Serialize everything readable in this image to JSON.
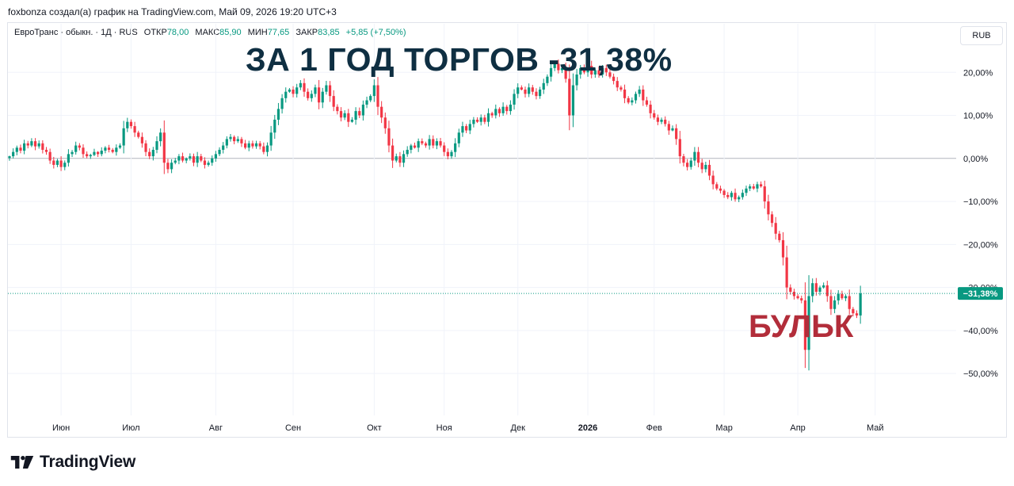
{
  "credit": "foxbonza создал(а) график на TradingView.com, Май 09, 2026 19:20 UTC+3",
  "legend": {
    "symbol": "ЕвроТранс · обыкн. · 1Д · RUS",
    "open_label": "ОТКР",
    "open_value": "78,00",
    "high_label": "МАКС",
    "high_value": "85,90",
    "low_label": "МИН",
    "low_value": "77,65",
    "close_label": "ЗАКР",
    "close_value": "83,85",
    "change": "+5,85 (+7,50%)"
  },
  "currency_button": "RUB",
  "headline": "ЗА 1 ГОД ТОРГОВ -31,38%",
  "annotation": "БУЛЬК",
  "brand": "TradingView",
  "colors": {
    "up": "#089981",
    "down": "#f23645",
    "headline": "#0f2f42",
    "annotation": "#b22d3a",
    "grid": "#f0f3fa",
    "zero_line": "#b2b5be"
  },
  "chart_data": {
    "type": "candlestick",
    "scale": "percent",
    "ylim": [
      -59,
      30
    ],
    "y_ticks": [
      {
        "value": 20,
        "label": "20,00%"
      },
      {
        "value": 10,
        "label": "10,00%"
      },
      {
        "value": 0,
        "label": "0,00%"
      },
      {
        "value": -10,
        "label": "−10,00%"
      },
      {
        "value": -20,
        "label": "−20,00%"
      },
      {
        "value": -30,
        "label": "−30,00%"
      },
      {
        "value": -40,
        "label": "−40,00%"
      },
      {
        "value": -50,
        "label": "−50,00%"
      }
    ],
    "x_ticks": [
      {
        "label": "Июн",
        "index": 14,
        "bold": false
      },
      {
        "label": "Июл",
        "index": 33,
        "bold": false
      },
      {
        "label": "Авг",
        "index": 56,
        "bold": false
      },
      {
        "label": "Сен",
        "index": 77,
        "bold": false
      },
      {
        "label": "Окт",
        "index": 99,
        "bold": false
      },
      {
        "label": "Ноя",
        "index": 118,
        "bold": false
      },
      {
        "label": "Дек",
        "index": 138,
        "bold": false
      },
      {
        "label": "2026",
        "index": 157,
        "bold": true
      },
      {
        "label": "Фев",
        "index": 175,
        "bold": false
      },
      {
        "label": "Мар",
        "index": 194,
        "bold": false
      },
      {
        "label": "Апр",
        "index": 214,
        "bold": false
      },
      {
        "label": "Май",
        "index": 235,
        "bold": false
      }
    ],
    "last_value": -31.38,
    "last_label": "−31,38%",
    "closes": [
      0.5,
      1.5,
      2.5,
      1.8,
      3.5,
      3.0,
      4.0,
      2.8,
      3.5,
      2.0,
      1.5,
      -0.5,
      -1.5,
      -0.5,
      -2.0,
      -1.0,
      1.0,
      1.5,
      3.0,
      2.5,
      1.0,
      0.5,
      0.8,
      1.5,
      1.0,
      1.8,
      2.5,
      2.0,
      1.5,
      2.5,
      3.0,
      7.0,
      8.5,
      7.5,
      6.0,
      5.0,
      3.5,
      1.5,
      0.5,
      2.0,
      4.0,
      6.0,
      -1.0,
      -2.5,
      -1.0,
      -0.5,
      0.5,
      -0.5,
      0.0,
      0.5,
      -1.0,
      0.5,
      -0.5,
      -1.5,
      -1.0,
      0.0,
      1.0,
      2.0,
      3.0,
      4.5,
      5.0,
      4.0,
      4.5,
      3.5,
      2.5,
      3.5,
      2.8,
      3.5,
      2.8,
      1.5,
      3.0,
      6.0,
      9.0,
      11.5,
      14.0,
      15.5,
      16.0,
      15.0,
      16.5,
      17.5,
      15.5,
      14.0,
      15.0,
      16.5,
      13.0,
      15.5,
      17.0,
      14.5,
      12.0,
      11.0,
      9.5,
      10.5,
      8.5,
      9.0,
      11.0,
      10.0,
      12.5,
      13.5,
      14.5,
      17.0,
      12.0,
      9.5,
      7.0,
      3.0,
      -0.5,
      0.5,
      -1.0,
      1.0,
      2.0,
      3.0,
      2.5,
      4.0,
      3.5,
      3.0,
      4.5,
      3.0,
      4.0,
      3.0,
      1.5,
      0.5,
      1.5,
      3.5,
      6.0,
      7.5,
      6.5,
      8.0,
      9.0,
      8.5,
      9.5,
      8.5,
      10.5,
      10.0,
      11.5,
      10.5,
      12.0,
      11.0,
      12.5,
      15.0,
      16.5,
      16.0,
      15.0,
      16.5,
      15.5,
      14.5,
      16.0,
      17.5,
      19.0,
      21.0,
      22.0,
      20.5,
      21.0,
      18.5,
      10.0,
      17.0,
      19.5,
      21.0,
      20.0,
      21.5,
      19.5,
      20.5,
      19.5,
      21.0,
      20.0,
      19.0,
      18.0,
      16.5,
      16.0,
      14.0,
      13.0,
      13.5,
      15.0,
      16.0,
      13.5,
      12.5,
      10.5,
      9.5,
      8.5,
      9.0,
      8.0,
      6.5,
      7.0,
      4.5,
      0.5,
      -1.0,
      -2.0,
      -0.5,
      1.5,
      -1.0,
      -2.5,
      -1.5,
      -4.0,
      -6.0,
      -7.0,
      -7.5,
      -8.5,
      -9.0,
      -8.0,
      -9.5,
      -9.0,
      -8.0,
      -7.0,
      -6.5,
      -7.0,
      -6.0,
      -6.5,
      -10.0,
      -13.0,
      -15.0,
      -17.5,
      -19.0,
      -23.0,
      -30.0,
      -31.0,
      -32.0,
      -32.5,
      -33.0,
      -44.5,
      -32.0,
      -29.0,
      -31.0,
      -30.0,
      -29.5,
      -32.0,
      -35.0,
      -33.0,
      -31.5,
      -32.5,
      -32.0,
      -35.0,
      -36.0,
      -36.5,
      -31.38
    ]
  }
}
